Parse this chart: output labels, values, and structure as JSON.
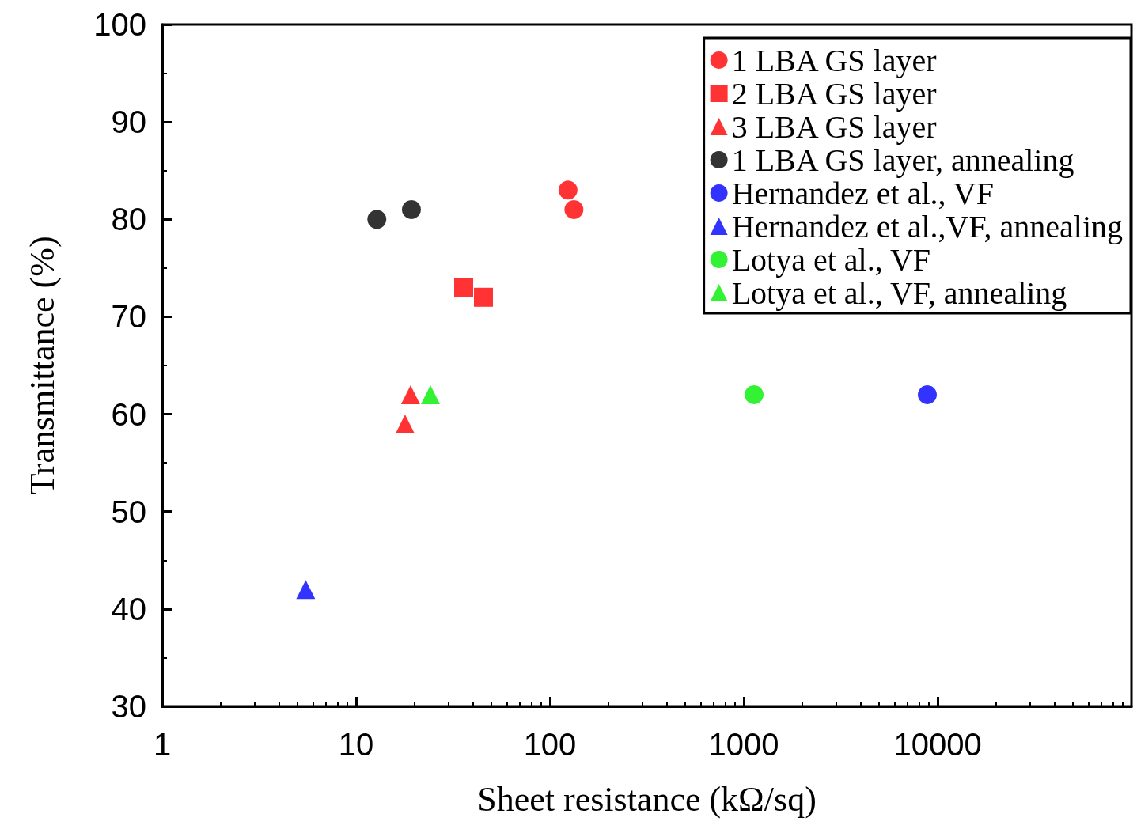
{
  "chart_data": {
    "type": "scatter",
    "xlabel": "Sheet resistance (kΩ/sq)",
    "ylabel": "Transmittance (%)",
    "log": "x",
    "xlim": [
      1,
      100000
    ],
    "xticks": [
      1,
      10,
      100,
      1000,
      10000
    ],
    "ylim": [
      30,
      100
    ],
    "yticks": [
      30,
      40,
      50,
      60,
      70,
      80,
      90,
      100
    ],
    "grid": false,
    "legend": "top right",
    "series": [
      {
        "name": "1 LBA GS layer",
        "color": "#ff0000",
        "marker": "circle",
        "x": [
          124,
          133
        ],
        "values": [
          83,
          81
        ]
      },
      {
        "name": "2 LBA GS layer",
        "color": "#ff0000",
        "marker": "square",
        "x": [
          35.9,
          45.4
        ],
        "values": [
          73,
          72
        ]
      },
      {
        "name": "3 LBA GS layer",
        "color": "#ff0000",
        "marker": "triangle",
        "x": [
          19.1,
          17.9
        ],
        "values": [
          62,
          59
        ]
      },
      {
        "name": "1 LBA GS layer, annealing",
        "color": "#000000",
        "marker": "circle",
        "x": [
          12.8,
          19.3
        ],
        "values": [
          80,
          81
        ]
      },
      {
        "name": "Hernandez et al., VF",
        "color": "#0000ff",
        "marker": "circle",
        "x": [
          8850
        ],
        "values": [
          62
        ]
      },
      {
        "name": "Hernandez et al.,VF, annealing",
        "color": "#0000ff",
        "marker": "triangle",
        "x": [
          5.5
        ],
        "values": [
          42
        ]
      },
      {
        "name": "Lotya et al., VF",
        "color": "#00ee00",
        "marker": "circle",
        "x": [
          1130
        ],
        "values": [
          62
        ]
      },
      {
        "name": "Lotya et al., VF, annealing",
        "color": "#00ee00",
        "marker": "triangle",
        "x": [
          24.2
        ],
        "values": [
          62
        ]
      }
    ]
  }
}
